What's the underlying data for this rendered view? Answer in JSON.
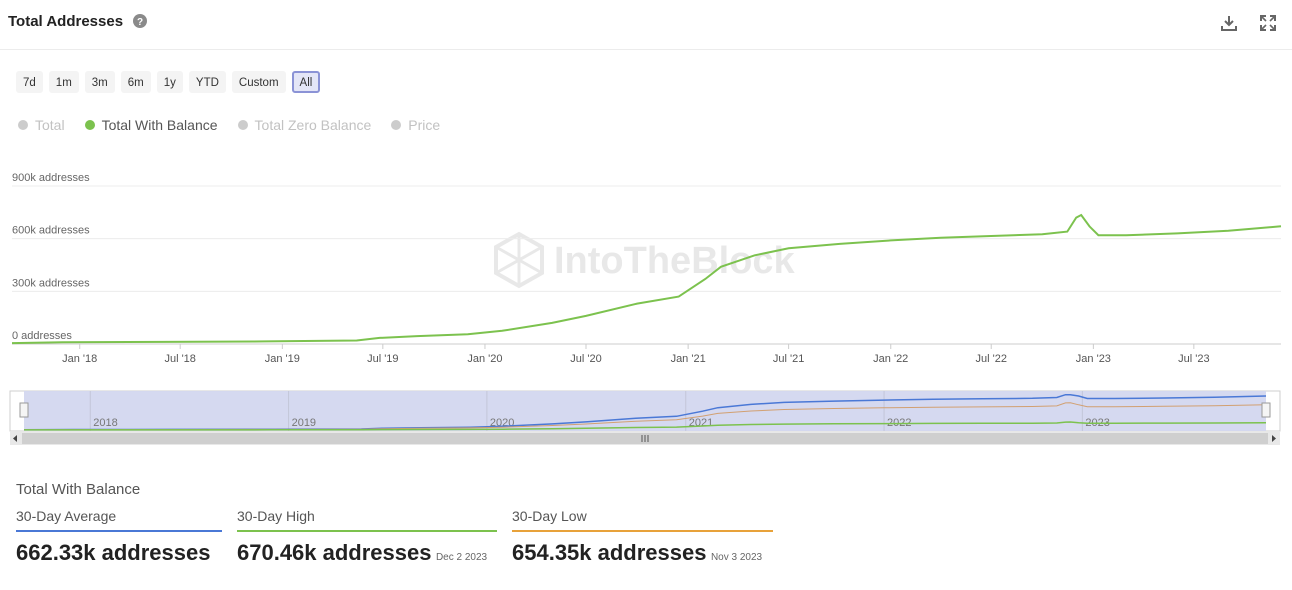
{
  "header": {
    "title": "Total Addresses",
    "icons": [
      "help-icon",
      "download-icon",
      "fullscreen-icon"
    ]
  },
  "range_buttons": [
    "7d",
    "1m",
    "3m",
    "6m",
    "1y",
    "YTD",
    "Custom",
    "All"
  ],
  "range_active": "All",
  "legend": [
    {
      "label": "Total",
      "active": false
    },
    {
      "label": "Total With Balance",
      "active": true
    },
    {
      "label": "Total Zero Balance",
      "active": false
    },
    {
      "label": "Price",
      "active": false
    }
  ],
  "watermark": "IntoTheBlock",
  "colors": {
    "with_balance": "#7cc24e",
    "navigator_total": "#4a78d6",
    "navigator_zero": "#d2a071",
    "average": "#4a78d6",
    "high": "#7cc24e",
    "low": "#e8a23a"
  },
  "chart_data": {
    "type": "line",
    "series": [
      {
        "name": "Total With Balance",
        "x": [
          "2017-09-01",
          "2017-12-01",
          "2018-06-01",
          "2018-12-01",
          "2019-05-15",
          "2019-06-25",
          "2019-09-01",
          "2019-12-01",
          "2020-02-01",
          "2020-05-01",
          "2020-07-01",
          "2020-10-01",
          "2020-12-15",
          "2021-02-01",
          "2021-03-01",
          "2021-05-01",
          "2021-07-01",
          "2021-10-01",
          "2022-01-01",
          "2022-04-01",
          "2022-07-01",
          "2022-10-01",
          "2022-11-15",
          "2022-12-01",
          "2022-12-10",
          "2022-12-25",
          "2023-01-10",
          "2023-03-01",
          "2023-06-01",
          "2023-09-01",
          "2023-12-05"
        ],
        "y": [
          5000,
          10000,
          12000,
          15000,
          20000,
          35000,
          45000,
          55000,
          75000,
          120000,
          160000,
          230000,
          270000,
          370000,
          440000,
          505000,
          545000,
          570000,
          590000,
          605000,
          615000,
          625000,
          640000,
          720000,
          735000,
          670000,
          620000,
          620000,
          630000,
          645000,
          670460
        ]
      }
    ],
    "x_ticks": [
      "Jan '18",
      "Jul '18",
      "Jan '19",
      "Jul '19",
      "Jan '20",
      "Jul '20",
      "Jan '21",
      "Jul '21",
      "Jan '22",
      "Jul '22",
      "Jan '23",
      "Jul '23"
    ],
    "y_ticks": [
      "0 addresses",
      "300k addresses",
      "600k addresses",
      "900k addresses"
    ],
    "ylim": [
      0,
      900000
    ],
    "grid": true,
    "navigator_years": [
      "2018",
      "2019",
      "2020",
      "2021",
      "2022",
      "2023"
    ]
  },
  "stats": {
    "title": "Total With Balance",
    "average": {
      "label": "30-Day Average",
      "value": "662.33k addresses",
      "date": ""
    },
    "high": {
      "label": "30-Day High",
      "value": "670.46k addresses",
      "date": "Dec 2 2023"
    },
    "low": {
      "label": "30-Day Low",
      "value": "654.35k addresses",
      "date": "Nov 3 2023"
    }
  }
}
